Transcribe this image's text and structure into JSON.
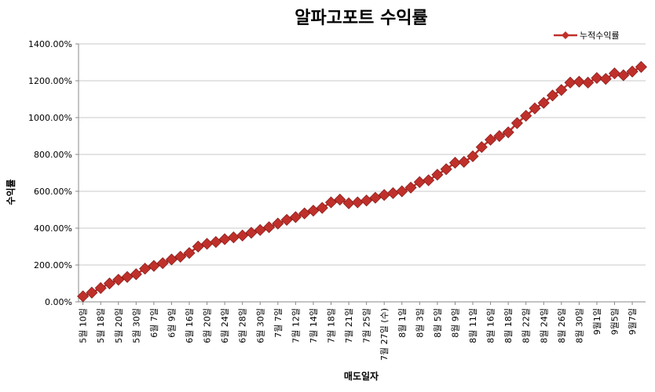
{
  "chart_data": {
    "type": "line",
    "title": "알파고포트 수익률",
    "xlabel": "매도일자",
    "ylabel": "수익률",
    "categories": [
      "5월 10일",
      null,
      "5월 18일",
      null,
      "5월 20일",
      null,
      "5월 30일",
      null,
      "6월 7일",
      null,
      "6월 9일",
      null,
      "6월 16일",
      null,
      "6월 20일",
      null,
      "6월 24일",
      null,
      "6월 28일",
      null,
      "6월 30일",
      null,
      "7월 7일",
      null,
      "7월 12일",
      null,
      "7월 14일",
      null,
      "7월 18일",
      null,
      "7월 21일",
      null,
      "7월 25일",
      null,
      "7월 27일 (수)",
      null,
      "8월 1일",
      null,
      "8월 3일",
      null,
      "8월 5일",
      null,
      "8월 9일",
      null,
      "8월 11일",
      null,
      "8월 16일",
      null,
      "8월 18일",
      null,
      "8월 22일",
      null,
      "8월 24일",
      null,
      "8월 26일",
      null,
      "8월 30일",
      null,
      "9월1일",
      null,
      "9월5일",
      null,
      "9월7일",
      null
    ],
    "series": [
      {
        "name": "누적수익률",
        "color": "#c0302b",
        "values": [
          30,
          50,
          75,
          100,
          120,
          135,
          150,
          180,
          195,
          210,
          230,
          245,
          265,
          300,
          315,
          325,
          340,
          350,
          360,
          375,
          390,
          405,
          425,
          445,
          460,
          480,
          495,
          510,
          540,
          555,
          535,
          540,
          550,
          565,
          580,
          590,
          600,
          620,
          650,
          660,
          690,
          720,
          755,
          760,
          790,
          840,
          880,
          900,
          920,
          970,
          1010,
          1050,
          1080,
          1120,
          1150,
          1190,
          1195,
          1190,
          1215,
          1210,
          1240,
          1230,
          1250,
          1275
        ]
      }
    ],
    "ylim": [
      0,
      1400
    ],
    "yticks": [
      {
        "value": 0,
        "label": "0.00%"
      },
      {
        "value": 200,
        "label": "200.00%"
      },
      {
        "value": 400,
        "label": "400.00%"
      },
      {
        "value": 600,
        "label": "600.00%"
      },
      {
        "value": 800,
        "label": "800.00%"
      },
      {
        "value": 1000,
        "label": "1000.00%"
      },
      {
        "value": 1200,
        "label": "1200.00%"
      },
      {
        "value": 1400,
        "label": "1400.00%"
      }
    ],
    "grid": true,
    "legend": "top-right"
  }
}
